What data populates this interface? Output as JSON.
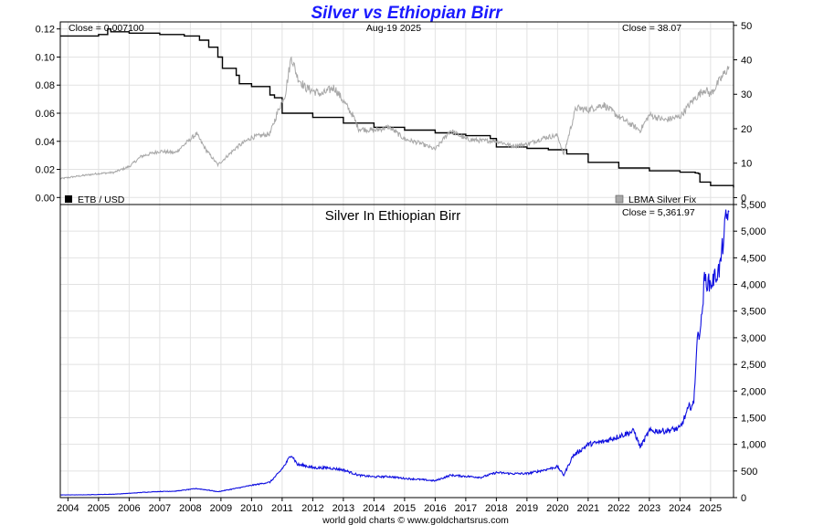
{
  "title": "Silver vs Ethiopian Birr",
  "date_label": "Aug-19  2025",
  "footer": "world gold charts © www.goldchartsrus.com",
  "chart_data": [
    {
      "type": "line",
      "panel": "top",
      "close_left": "Close = 0.007100",
      "close_right": "Close = 38.07",
      "x_range": [
        2003.75,
        2025.75
      ],
      "left_axis": {
        "ylim": [
          -0.005,
          0.125
        ],
        "ticks": [
          0.0,
          0.02,
          0.04,
          0.06,
          0.08,
          0.1,
          0.12
        ],
        "tick_labels": [
          "0.00",
          "0.02",
          "0.04",
          "0.06",
          "0.08",
          "0.10",
          "0.12"
        ]
      },
      "right_axis": {
        "ylim": [
          -2,
          51
        ],
        "ticks": [
          0,
          10,
          20,
          30,
          40,
          50
        ],
        "tick_labels": [
          "0",
          "10",
          "20",
          "30",
          "40",
          "50"
        ]
      },
      "legend": [
        {
          "label": "ETB / USD",
          "color": "#000000",
          "position": "bottom-left"
        },
        {
          "label": "LBMA Silver Fix",
          "color": "#a8a8a8",
          "position": "bottom-right"
        }
      ],
      "series": [
        {
          "name": "ETB / USD",
          "axis": "left",
          "color": "#000000",
          "step": true,
          "x": [
            2003.75,
            2004.6,
            2005.0,
            2005.25,
            2005.3,
            2005.4,
            2006.0,
            2007.0,
            2007.8,
            2008.3,
            2008.6,
            2008.9,
            2009.05,
            2009.5,
            2009.6,
            2010.0,
            2010.6,
            2010.75,
            2011.0,
            2012.0,
            2013.0,
            2014.0,
            2015.0,
            2016.0,
            2016.6,
            2017.0,
            2017.8,
            2018.0,
            2019.0,
            2019.7,
            2020.3,
            2021.0,
            2022.0,
            2023.0,
            2024.0,
            2024.5,
            2024.6,
            2024.65,
            2025.0,
            2025.75
          ],
          "y": [
            0.115,
            0.115,
            0.116,
            0.116,
            0.12,
            0.118,
            0.117,
            0.116,
            0.115,
            0.112,
            0.107,
            0.1,
            0.092,
            0.087,
            0.081,
            0.079,
            0.073,
            0.071,
            0.06,
            0.057,
            0.053,
            0.05,
            0.048,
            0.046,
            0.045,
            0.044,
            0.042,
            0.036,
            0.035,
            0.034,
            0.031,
            0.025,
            0.021,
            0.019,
            0.018,
            0.0175,
            0.017,
            0.011,
            0.0085,
            0.0071
          ]
        },
        {
          "name": "LBMA Silver Fix",
          "axis": "right",
          "color": "#a8a8a8",
          "x": [
            2003.75,
            2004.3,
            2005.0,
            2005.5,
            2006.0,
            2006.4,
            2007.0,
            2007.5,
            2008.2,
            2008.5,
            2008.9,
            2009.5,
            2010.0,
            2010.6,
            2010.9,
            2011.1,
            2011.3,
            2011.5,
            2011.75,
            2012.0,
            2012.3,
            2012.7,
            2013.0,
            2013.3,
            2013.5,
            2014.0,
            2014.5,
            2015.0,
            2015.5,
            2016.0,
            2016.5,
            2017.0,
            2017.5,
            2018.0,
            2018.5,
            2019.0,
            2019.6,
            2020.0,
            2020.2,
            2020.6,
            2021.0,
            2021.5,
            2022.0,
            2022.7,
            2023.0,
            2023.5,
            2024.0,
            2024.4,
            2024.8,
            2025.0,
            2025.3,
            2025.6
          ],
          "y": [
            5.5,
            6.2,
            7.0,
            7.3,
            9.0,
            12.0,
            13.5,
            13.0,
            18.5,
            14.0,
            9.5,
            14.5,
            17.5,
            18.5,
            26.0,
            30.0,
            41.0,
            35.0,
            32.0,
            31.0,
            30.0,
            32.0,
            28.0,
            24.0,
            20.0,
            19.5,
            20.5,
            17.0,
            15.8,
            14.0,
            19.5,
            17.0,
            16.5,
            16.5,
            15.0,
            15.5,
            17.5,
            18.0,
            12.5,
            26.0,
            25.5,
            27.0,
            23.5,
            19.5,
            24.0,
            22.5,
            23.5,
            28.0,
            31.5,
            30.0,
            34.0,
            38.07
          ]
        }
      ]
    },
    {
      "type": "line",
      "panel": "bottom",
      "title": "Silver In Ethiopian Birr",
      "close_right": "Close = 5,361.97",
      "x_range": [
        2003.75,
        2025.75
      ],
      "x_ticks": [
        2004,
        2005,
        2006,
        2007,
        2008,
        2009,
        2010,
        2011,
        2012,
        2013,
        2014,
        2015,
        2016,
        2017,
        2018,
        2019,
        2020,
        2021,
        2022,
        2023,
        2024,
        2025
      ],
      "x_tick_labels": [
        "2004",
        "2005",
        "2006",
        "2007",
        "2008",
        "2009",
        "2010",
        "2011",
        "2012",
        "2013",
        "2014",
        "2015",
        "2016",
        "2017",
        "2018",
        "2019",
        "2020",
        "2021",
        "2022",
        "2023",
        "2024",
        "2025"
      ],
      "right_axis": {
        "ylim": [
          0,
          5500
        ],
        "ticks": [
          0,
          500,
          1000,
          1500,
          2000,
          2500,
          3000,
          3500,
          4000,
          4500,
          5000,
          5500
        ],
        "tick_labels": [
          "0",
          "500",
          "1,000",
          "1,500",
          "2,000",
          "2,500",
          "3,000",
          "3,500",
          "4,000",
          "4,500",
          "5,000",
          "5,500"
        ]
      },
      "series": [
        {
          "name": "Silver In Ethiopian Birr",
          "color": "#1010e0",
          "x": [
            2003.75,
            2004.5,
            2005.0,
            2005.5,
            2006.0,
            2006.5,
            2007.0,
            2007.5,
            2008.2,
            2008.6,
            2008.9,
            2009.5,
            2010.0,
            2010.6,
            2010.9,
            2011.1,
            2011.3,
            2011.5,
            2011.75,
            2012.0,
            2012.5,
            2013.0,
            2013.5,
            2014.0,
            2014.5,
            2015.0,
            2015.5,
            2016.0,
            2016.5,
            2017.0,
            2017.5,
            2018.0,
            2018.5,
            2019.0,
            2019.5,
            2020.0,
            2020.2,
            2020.5,
            2021.0,
            2021.5,
            2022.0,
            2022.5,
            2022.7,
            2023.0,
            2023.5,
            2024.0,
            2024.3,
            2024.45,
            2024.55,
            2024.7,
            2024.8,
            2025.0,
            2025.3,
            2025.5,
            2025.6
          ],
          "y": [
            50,
            52,
            58,
            64,
            80,
            100,
            115,
            120,
            170,
            140,
            110,
            175,
            230,
            290,
            470,
            620,
            810,
            620,
            600,
            560,
            560,
            520,
            420,
            390,
            395,
            360,
            340,
            315,
            420,
            400,
            380,
            470,
            450,
            450,
            510,
            580,
            420,
            780,
            1000,
            1050,
            1150,
            1250,
            950,
            1250,
            1250,
            1300,
            1700,
            1750,
            2900,
            3300,
            4100,
            4000,
            4300,
            5200,
            5362
          ]
        }
      ]
    }
  ]
}
